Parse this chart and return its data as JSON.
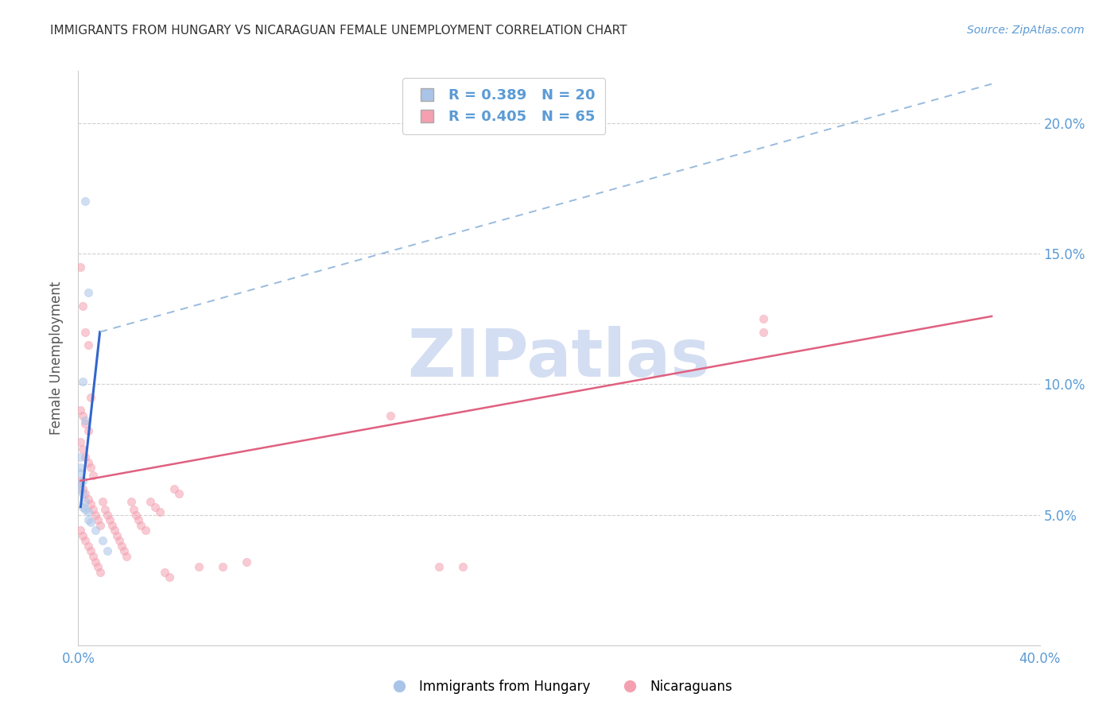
{
  "title": "IMMIGRANTS FROM HUNGARY VS NICARAGUAN FEMALE UNEMPLOYMENT CORRELATION CHART",
  "source_text": "Source: ZipAtlas.com",
  "ylabel": "Female Unemployment",
  "xlim": [
    0.0,
    0.4
  ],
  "ylim": [
    0.0,
    0.22
  ],
  "yticks": [
    0.05,
    0.1,
    0.15,
    0.2
  ],
  "legend_entries": [
    {
      "label": "R = 0.389   N = 20",
      "color": "#aac4e8"
    },
    {
      "label": "R = 0.405   N = 65",
      "color": "#f4a0b0"
    }
  ],
  "bottom_legend": [
    {
      "label": "Immigrants from Hungary",
      "color": "#aac4e8"
    },
    {
      "label": "Nicaraguans",
      "color": "#f4a0b0"
    }
  ],
  "hungary_scatter": [
    [
      0.003,
      0.17
    ],
    [
      0.004,
      0.135
    ],
    [
      0.002,
      0.101
    ],
    [
      0.003,
      0.086
    ],
    [
      0.001,
      0.072
    ],
    [
      0.001,
      0.068
    ],
    [
      0.001,
      0.066
    ],
    [
      0.002,
      0.063
    ],
    [
      0.001,
      0.062
    ],
    [
      0.001,
      0.06
    ],
    [
      0.002,
      0.058
    ],
    [
      0.003,
      0.055
    ],
    [
      0.002,
      0.053
    ],
    [
      0.003,
      0.052
    ],
    [
      0.004,
      0.051
    ],
    [
      0.004,
      0.048
    ],
    [
      0.005,
      0.047
    ],
    [
      0.007,
      0.044
    ],
    [
      0.01,
      0.04
    ],
    [
      0.012,
      0.036
    ]
  ],
  "nicaragua_scatter": [
    [
      0.001,
      0.145
    ],
    [
      0.002,
      0.13
    ],
    [
      0.003,
      0.12
    ],
    [
      0.004,
      0.115
    ],
    [
      0.001,
      0.09
    ],
    [
      0.002,
      0.088
    ],
    [
      0.003,
      0.085
    ],
    [
      0.004,
      0.082
    ],
    [
      0.001,
      0.078
    ],
    [
      0.002,
      0.075
    ],
    [
      0.003,
      0.072
    ],
    [
      0.004,
      0.07
    ],
    [
      0.005,
      0.095
    ],
    [
      0.005,
      0.068
    ],
    [
      0.006,
      0.065
    ],
    [
      0.001,
      0.063
    ],
    [
      0.002,
      0.06
    ],
    [
      0.003,
      0.058
    ],
    [
      0.004,
      0.056
    ],
    [
      0.005,
      0.054
    ],
    [
      0.006,
      0.052
    ],
    [
      0.007,
      0.05
    ],
    [
      0.008,
      0.048
    ],
    [
      0.009,
      0.046
    ],
    [
      0.001,
      0.044
    ],
    [
      0.002,
      0.042
    ],
    [
      0.003,
      0.04
    ],
    [
      0.004,
      0.038
    ],
    [
      0.005,
      0.036
    ],
    [
      0.006,
      0.034
    ],
    [
      0.007,
      0.032
    ],
    [
      0.008,
      0.03
    ],
    [
      0.009,
      0.028
    ],
    [
      0.01,
      0.055
    ],
    [
      0.011,
      0.052
    ],
    [
      0.012,
      0.05
    ],
    [
      0.013,
      0.048
    ],
    [
      0.014,
      0.046
    ],
    [
      0.015,
      0.044
    ],
    [
      0.016,
      0.042
    ],
    [
      0.017,
      0.04
    ],
    [
      0.018,
      0.038
    ],
    [
      0.019,
      0.036
    ],
    [
      0.02,
      0.034
    ],
    [
      0.022,
      0.055
    ],
    [
      0.023,
      0.052
    ],
    [
      0.024,
      0.05
    ],
    [
      0.025,
      0.048
    ],
    [
      0.026,
      0.046
    ],
    [
      0.028,
      0.044
    ],
    [
      0.03,
      0.055
    ],
    [
      0.032,
      0.053
    ],
    [
      0.034,
      0.051
    ],
    [
      0.036,
      0.028
    ],
    [
      0.038,
      0.026
    ],
    [
      0.04,
      0.06
    ],
    [
      0.042,
      0.058
    ],
    [
      0.05,
      0.03
    ],
    [
      0.06,
      0.03
    ],
    [
      0.07,
      0.032
    ],
    [
      0.13,
      0.088
    ],
    [
      0.15,
      0.03
    ],
    [
      0.16,
      0.03
    ],
    [
      0.285,
      0.125
    ],
    [
      0.285,
      0.12
    ]
  ],
  "hungary_line_solid": [
    [
      0.001,
      0.053
    ],
    [
      0.009,
      0.12
    ]
  ],
  "hungary_line_dashed": [
    [
      0.009,
      0.12
    ],
    [
      0.38,
      0.215
    ]
  ],
  "nicaragua_line": [
    [
      0.001,
      0.063
    ],
    [
      0.38,
      0.126
    ]
  ],
  "title_fontsize": 11,
  "tick_color": "#5b9bd5",
  "axis_label_color": "#555555",
  "grid_color": "#d0d0d0",
  "background_color": "#ffffff",
  "scatter_alpha": 0.55,
  "scatter_size": 55,
  "watermark_text": "ZIPatlas",
  "watermark_color": "#cdd9f0",
  "watermark_fontsize": 60
}
